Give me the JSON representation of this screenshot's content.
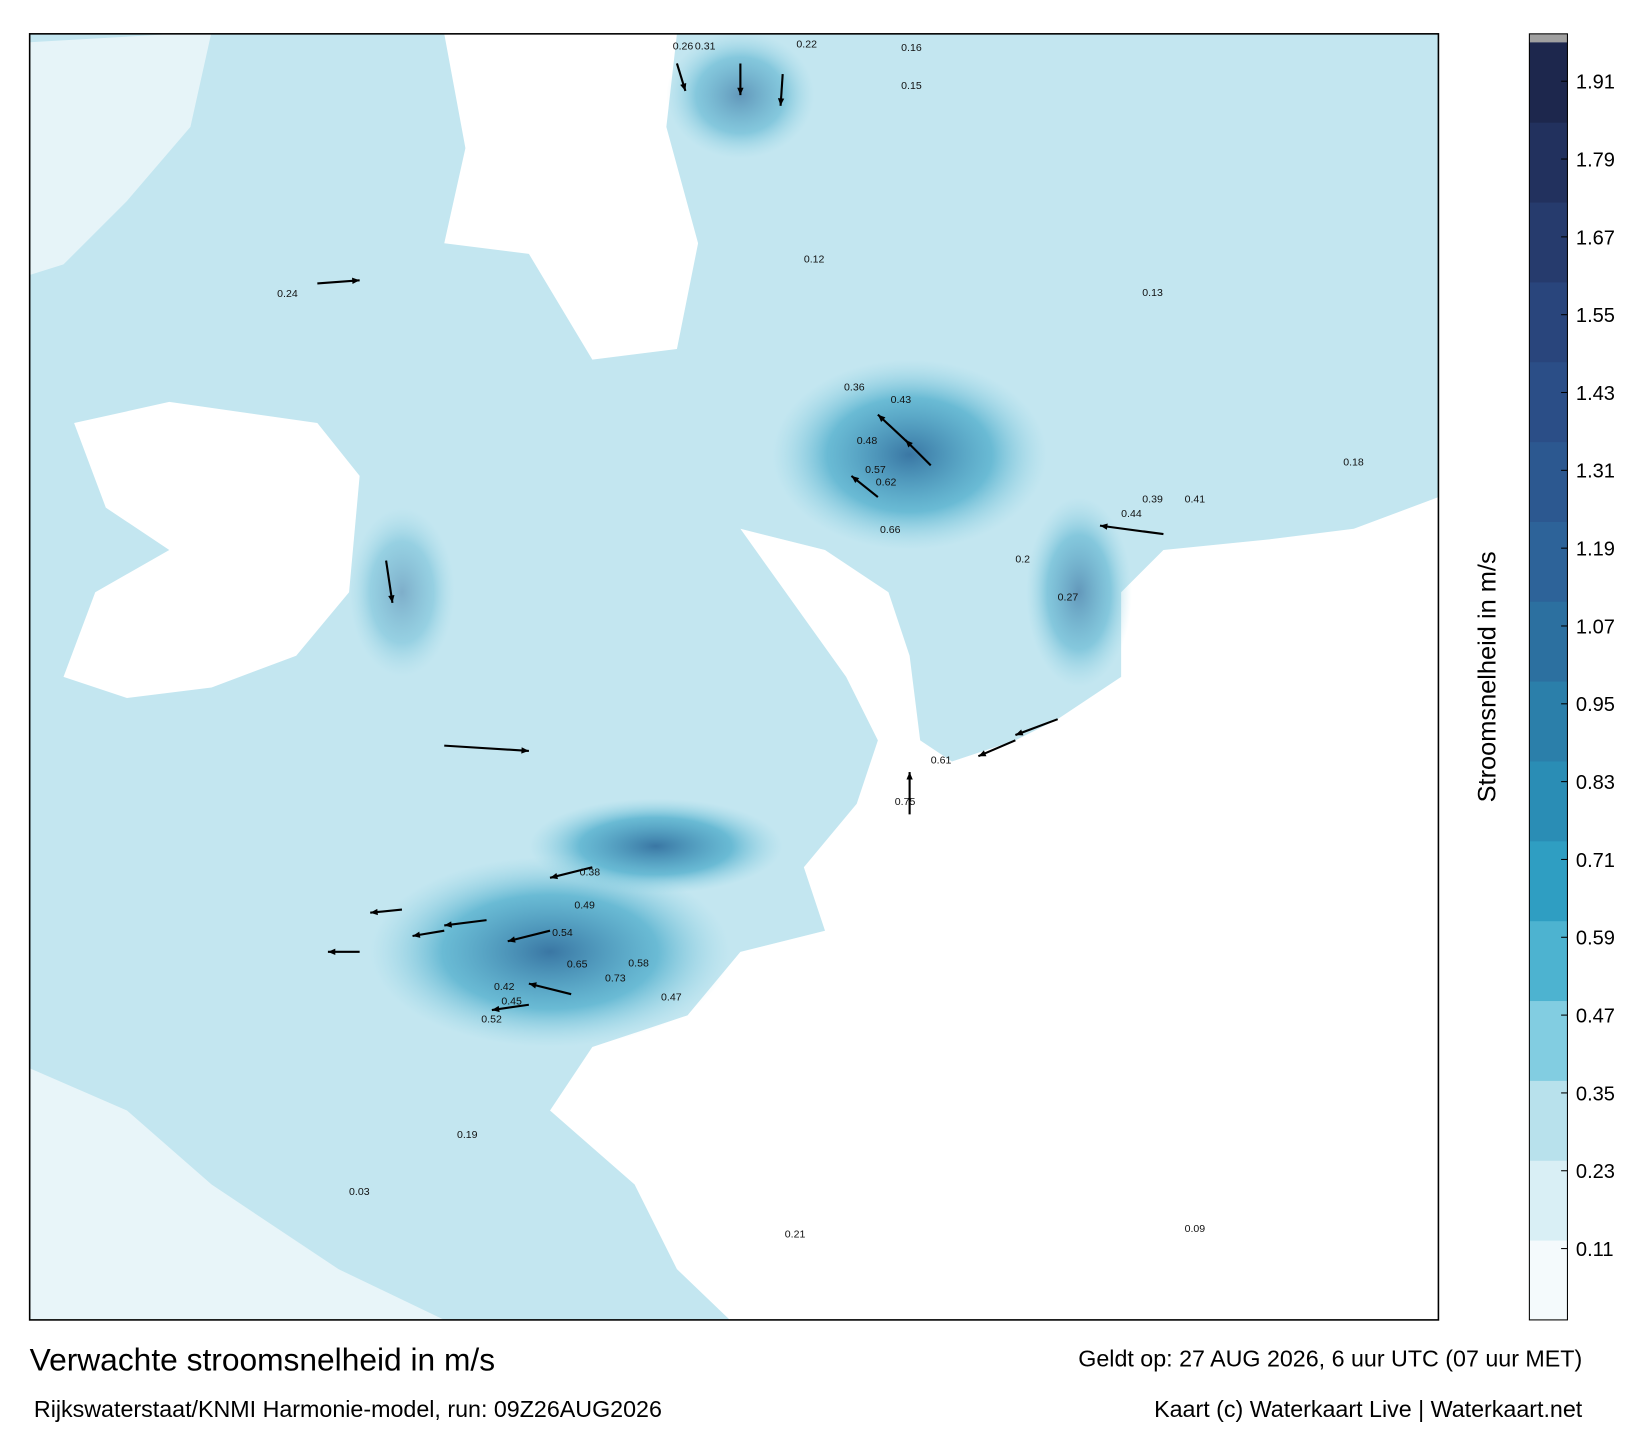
{
  "title": "Verwachte stroomsnelheid in m/s",
  "subtitle": "Rijkswaterstaat/KNMI Harmonie-model, run: 09Z26AUG2026",
  "valid_time": "Geldt op: 27 AUG 2026, 6 uur UTC (07 uur MET)",
  "credit": "Kaart (c) Waterkaart Live | Waterkaart.net",
  "colorbar": {
    "label": "Stroomsnelheid in m/s",
    "clim": [
      0,
      1.97
    ],
    "ticks": [
      0.11,
      0.23,
      0.35,
      0.47,
      0.59,
      0.71,
      0.83,
      0.95,
      1.07,
      1.19,
      1.31,
      1.43,
      1.55,
      1.67,
      1.79,
      1.91
    ],
    "colors": [
      "#f4fafc",
      "#d9eff5",
      "#b8e1ec",
      "#82cde1",
      "#4db3d0",
      "#2f9ec2",
      "#2a8db5",
      "#2b7faa",
      "#2c70a0",
      "#2d6399",
      "#2c5890",
      "#2b4e87",
      "#29457c",
      "#263b6d",
      "#22315e",
      "#1d274d"
    ]
  },
  "map_labels": [
    0.26,
    0.31,
    0.22,
    0.16,
    0.15,
    0.43,
    0.48,
    0.57,
    0.62,
    0.66,
    0.44,
    0.39,
    0.41,
    0.36,
    0.61,
    0.75,
    0.49,
    0.54,
    0.65,
    0.73,
    0.58,
    0.45,
    0.52,
    0.47,
    0.38,
    0.42,
    0.21,
    0.18,
    0.13,
    0.24,
    0.19,
    0.27,
    0.12,
    0.2,
    0.09,
    0.03
  ]
}
